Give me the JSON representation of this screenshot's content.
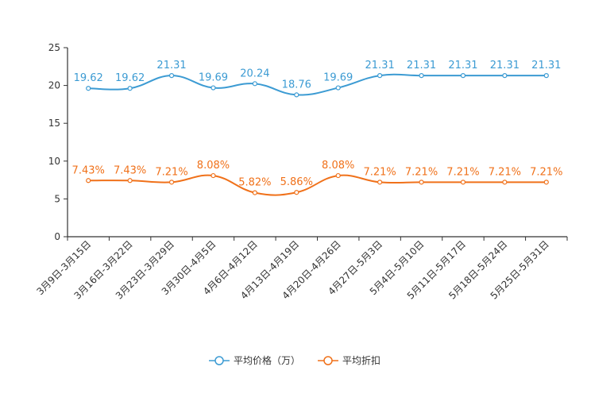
{
  "chart_data": {
    "type": "line",
    "title": "",
    "xlabel": "",
    "ylabel": "",
    "ylim": [
      0,
      25
    ],
    "yticks": [
      0,
      5,
      10,
      15,
      20,
      25
    ],
    "grid": false,
    "legend_position": "bottom",
    "categories": [
      "3月9日-3月15日",
      "3月16日-3月22日",
      "3月23日-3月29日",
      "3月30日-4月5日",
      "4月6日-4月12日",
      "4月13日-4月19日",
      "4月20日-4月26日",
      "4月27日-5月3日",
      "5月4日-5月10日",
      "5月11日-5月17日",
      "5月18日-5月24日",
      "5月25日-5月31日"
    ],
    "series": [
      {
        "name": "平均价格（万）",
        "color": "#3c9bd3",
        "values": [
          19.62,
          19.62,
          21.31,
          19.69,
          20.24,
          18.76,
          19.69,
          21.31,
          21.31,
          21.31,
          21.31,
          21.31
        ],
        "labels": [
          "19.62",
          "19.62",
          "21.31",
          "19.69",
          "20.24",
          "18.76",
          "19.69",
          "21.31",
          "21.31",
          "21.31",
          "21.31",
          "21.31"
        ]
      },
      {
        "name": "平均折扣",
        "color": "#f0711a",
        "values": [
          7.43,
          7.43,
          7.21,
          8.08,
          5.82,
          5.86,
          8.08,
          7.21,
          7.21,
          7.21,
          7.21,
          7.21
        ],
        "labels": [
          "7.43%",
          "7.43%",
          "7.21%",
          "8.08%",
          "5.82%",
          "5.86%",
          "8.08%",
          "7.21%",
          "7.21%",
          "7.21%",
          "7.21%",
          "7.21%"
        ]
      }
    ]
  }
}
